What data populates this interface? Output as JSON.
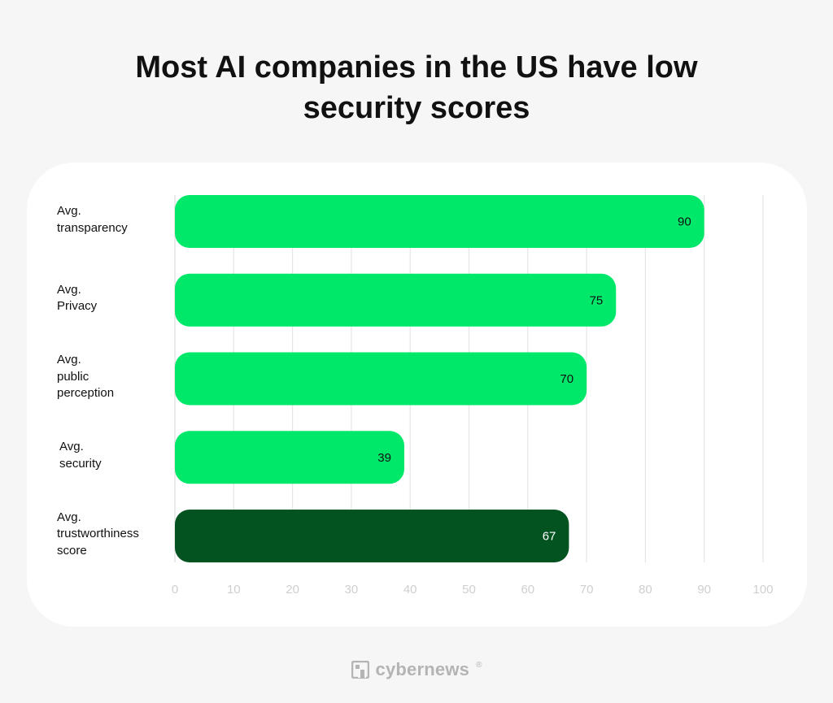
{
  "title_lines": [
    "Most AI companies in the US have low",
    "security scores"
  ],
  "chart_data": {
    "type": "bar",
    "orientation": "horizontal",
    "title": "Most AI companies in the US have low security scores",
    "categories": [
      [
        "Avg.",
        "transparency"
      ],
      [
        "Avg.",
        "Privacy"
      ],
      [
        "Avg.",
        "public",
        "perception"
      ],
      [
        "Avg.",
        "security"
      ],
      [
        "Avg.",
        "trustworthiness",
        "score"
      ]
    ],
    "values": [
      90,
      75,
      70,
      39,
      67
    ],
    "data_labels": [
      "90",
      "75",
      "70",
      "39",
      "67"
    ],
    "xlim": [
      0,
      100
    ],
    "xticks": [
      0,
      10,
      20,
      30,
      40,
      50,
      60,
      70,
      80,
      90,
      100
    ],
    "grid": "vertical",
    "bar_colors": [
      "#00e86a",
      "#00e86a",
      "#00e86a",
      "#00e86a",
      "#025320"
    ],
    "tick_color": "#cfcfcf",
    "grid_color": "#e6e6e6"
  },
  "footer": {
    "brand": "cybernews",
    "registered_mark": "®",
    "logo_icon": "cybernews-logo-icon",
    "color": "#b4b4b4"
  }
}
